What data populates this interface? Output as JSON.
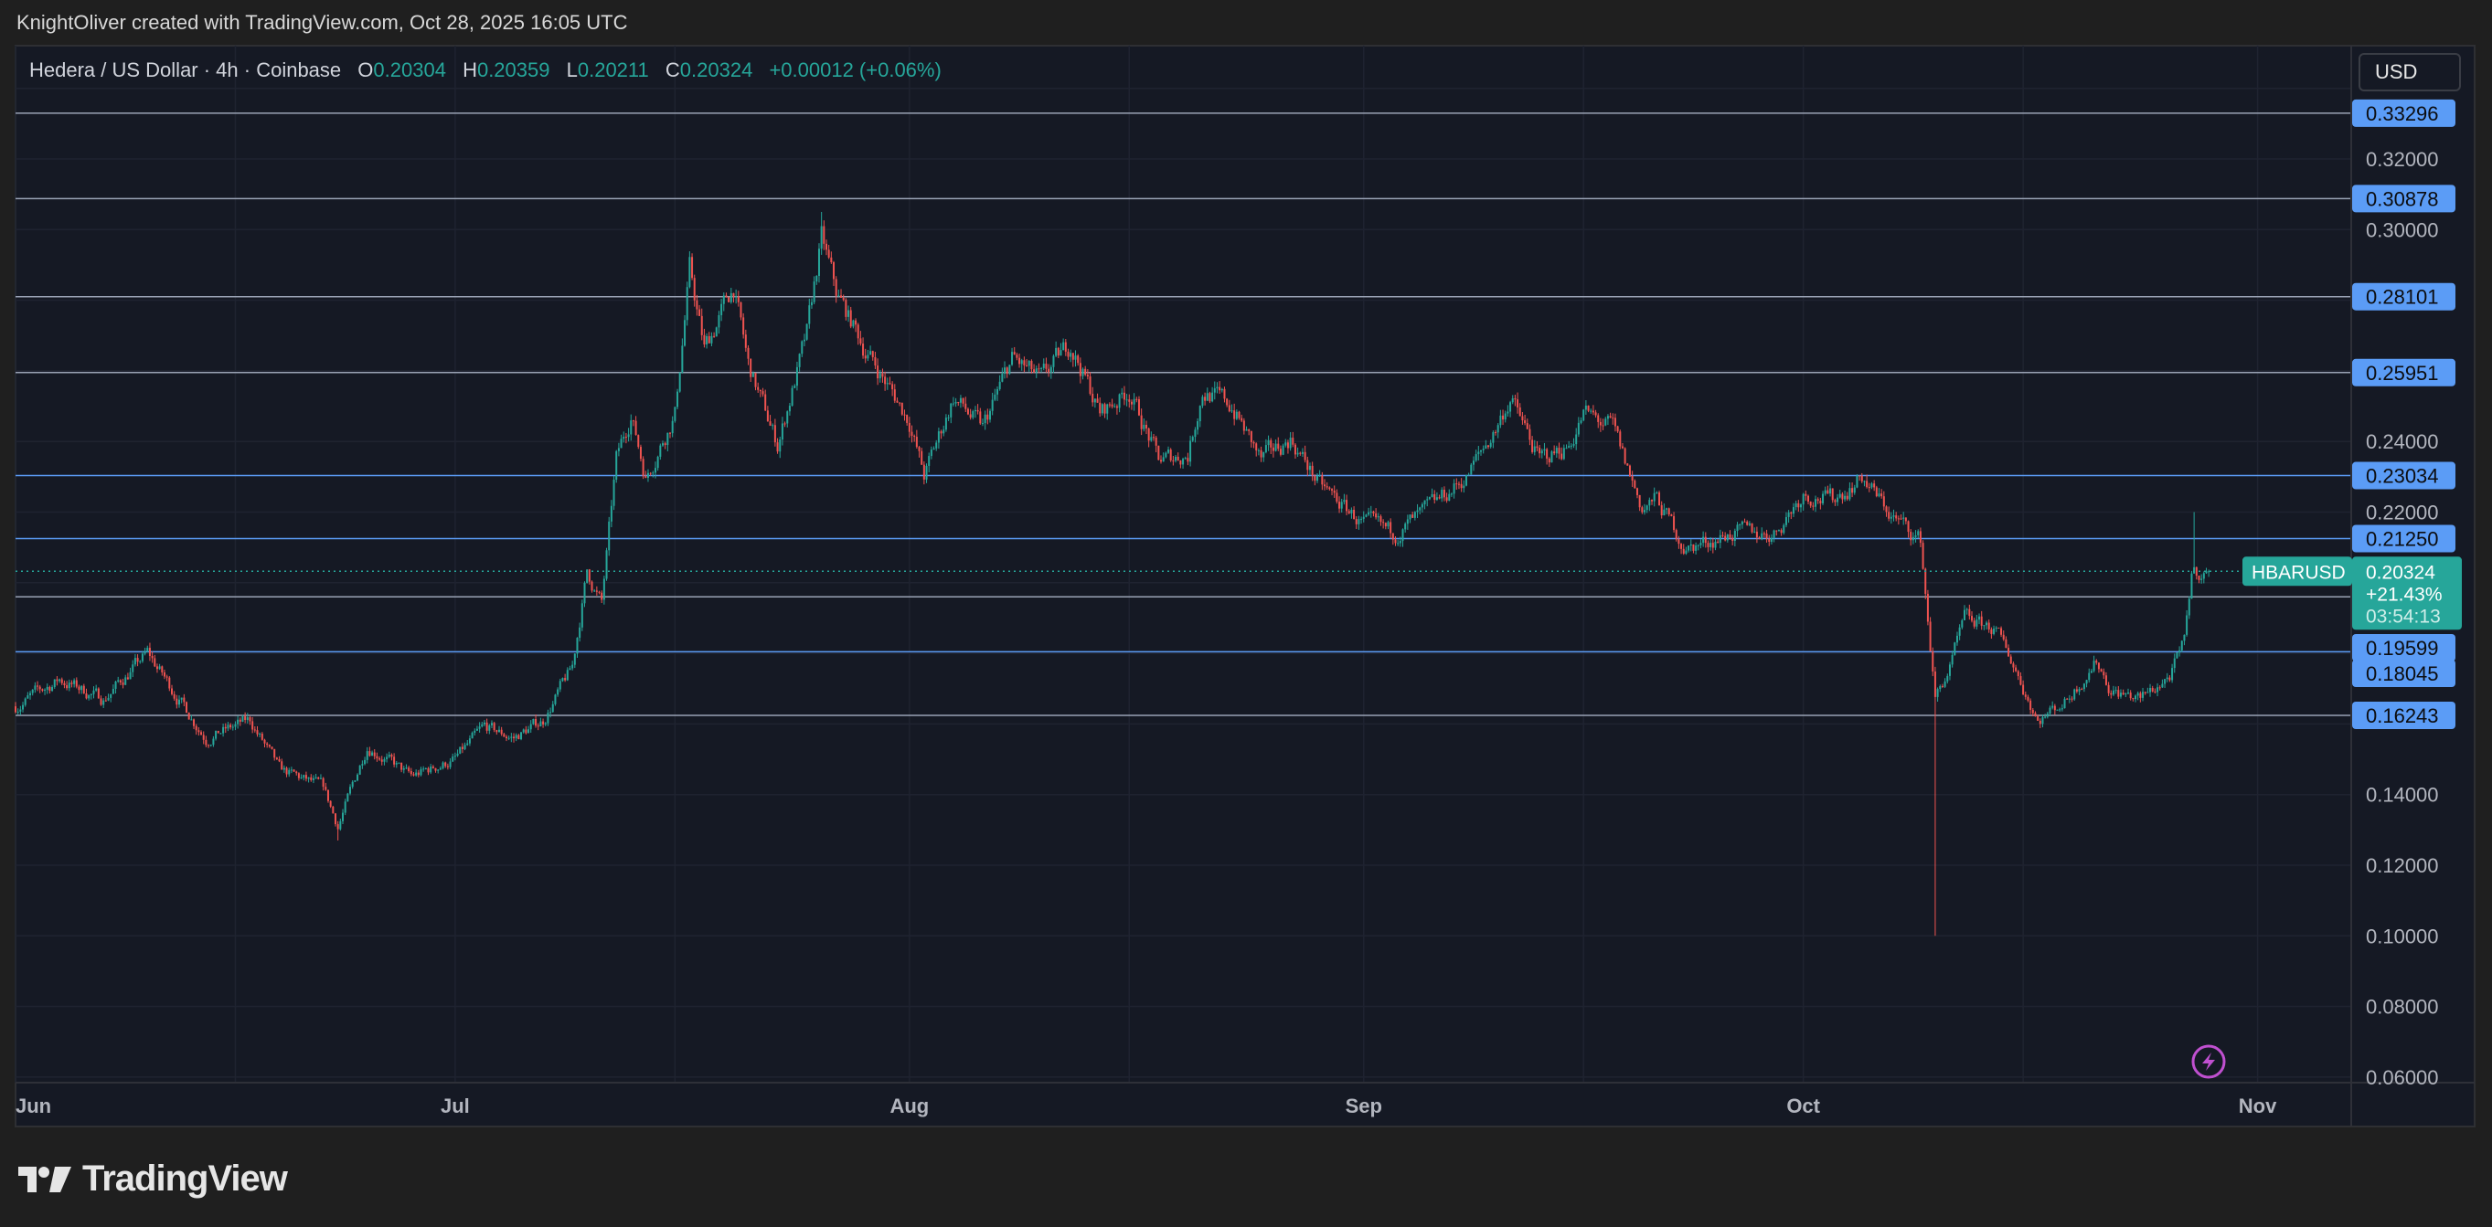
{
  "credit": "KnightOliver created with TradingView.com, Oct 28, 2025 16:05 UTC",
  "legend": {
    "symbol_desc": "Hedera / US Dollar · 4h · Coinbase",
    "o_label": "O",
    "o": "0.20304",
    "h_label": "H",
    "h": "0.20359",
    "l_label": "L",
    "l": "0.20211",
    "c_label": "C",
    "c": "0.20324",
    "change": "+0.00012 (+0.06%)"
  },
  "currency_button": "USD",
  "price_axis_ticks": [
    "0.32000",
    "0.30000",
    "0.24000",
    "0.22000",
    "0.14000",
    "0.12000",
    "0.10000",
    "0.08000",
    "0.06000"
  ],
  "time_axis_ticks": [
    "Jun",
    "Jul",
    "Aug",
    "Sep",
    "Oct",
    "Nov"
  ],
  "levels": [
    "0.33296",
    "0.30878",
    "0.28101",
    "0.25951",
    "0.23034",
    "0.21250",
    "0.19599",
    "0.18045",
    "0.16243"
  ],
  "current": {
    "symbol": "HBARUSD",
    "price": "0.20324",
    "change_pct": "+21.43%",
    "countdown": "03:54:13"
  },
  "logo_text": "TradingView",
  "colors": {
    "up": "#26a69a",
    "down": "#ef5350",
    "level_label": "#5b9cf6",
    "background": "#151924",
    "lightning": "#c050d0"
  },
  "icons": {
    "alert": "lightning-icon"
  },
  "chart_data": {
    "type": "candlestick",
    "interval": "4h",
    "symbol": "HBARUSD",
    "ylim": [
      0.06,
      0.34
    ],
    "grid": true,
    "path": [
      [
        "2025-06-01",
        0.165
      ],
      [
        "2025-06-04",
        0.1726
      ],
      [
        "2025-06-07",
        0.167
      ],
      [
        "2025-06-10",
        0.18
      ],
      [
        "2025-06-14",
        0.156
      ],
      [
        "2025-06-17",
        0.161
      ],
      [
        "2025-06-19",
        0.147
      ],
      [
        "2025-06-22",
        0.142
      ],
      [
        "2025-06-23",
        0.131
      ],
      [
        "2025-06-25",
        0.154
      ],
      [
        "2025-06-28",
        0.145
      ],
      [
        "2025-07-01",
        0.15
      ],
      [
        "2025-07-03",
        0.159
      ],
      [
        "2025-07-05",
        0.156
      ],
      [
        "2025-07-07",
        0.161
      ],
      [
        "2025-07-09",
        0.176
      ],
      [
        "2025-07-10",
        0.203
      ],
      [
        "2025-07-11",
        0.194
      ],
      [
        "2025-07-12",
        0.2345
      ],
      [
        "2025-07-13",
        0.248
      ],
      [
        "2025-07-14",
        0.23
      ],
      [
        "2025-07-16",
        0.248
      ],
      [
        "2025-07-17",
        0.2885
      ],
      [
        "2025-07-18",
        0.266
      ],
      [
        "2025-07-20",
        0.284
      ],
      [
        "2025-07-21",
        0.2615
      ],
      [
        "2025-07-23",
        0.239
      ],
      [
        "2025-07-25",
        0.27
      ],
      [
        "2025-07-26",
        0.2975
      ],
      [
        "2025-07-27",
        0.282
      ],
      [
        "2025-07-29",
        0.266
      ],
      [
        "2025-08-01",
        0.246
      ],
      [
        "2025-08-02",
        0.23
      ],
      [
        "2025-08-04",
        0.2525
      ],
      [
        "2025-08-06",
        0.2435
      ],
      [
        "2025-08-08",
        0.2635
      ],
      [
        "2025-08-10",
        0.257
      ],
      [
        "2025-08-12",
        0.268
      ],
      [
        "2025-08-14",
        0.248
      ],
      [
        "2025-08-16",
        0.2545
      ],
      [
        "2025-08-18",
        0.2345
      ],
      [
        "2025-08-20",
        0.2365
      ],
      [
        "2025-08-21",
        0.2545
      ],
      [
        "2025-08-23",
        0.25
      ],
      [
        "2025-08-25",
        0.2345
      ],
      [
        "2025-08-27",
        0.241
      ],
      [
        "2025-08-29",
        0.2275
      ],
      [
        "2025-09-01",
        0.2165
      ],
      [
        "2025-09-03",
        0.214
      ],
      [
        "2025-09-05",
        0.219
      ],
      [
        "2025-09-08",
        0.23
      ],
      [
        "2025-09-10",
        0.2435
      ],
      [
        "2025-09-11",
        0.2525
      ],
      [
        "2025-09-13",
        0.2345
      ],
      [
        "2025-09-15",
        0.239
      ],
      [
        "2025-09-16",
        0.248
      ],
      [
        "2025-09-18",
        0.2435
      ],
      [
        "2025-09-20",
        0.221
      ],
      [
        "2025-09-21",
        0.2235
      ],
      [
        "2025-09-23",
        0.2095
      ],
      [
        "2025-09-26",
        0.214
      ],
      [
        "2025-09-29",
        0.214
      ],
      [
        "2025-10-01",
        0.2255
      ],
      [
        "2025-10-03",
        0.2235
      ],
      [
        "2025-10-05",
        0.23
      ],
      [
        "2025-10-07",
        0.219
      ],
      [
        "2025-10-09",
        0.212
      ],
      [
        "2025-10-10",
        0.167
      ],
      [
        "2025-10-11",
        0.176
      ],
      [
        "2025-10-12",
        0.1895
      ],
      [
        "2025-10-14",
        0.187
      ],
      [
        "2025-10-15",
        0.18
      ],
      [
        "2025-10-17",
        0.161
      ],
      [
        "2025-10-19",
        0.167
      ],
      [
        "2025-10-21",
        0.178
      ],
      [
        "2025-10-22",
        0.1695
      ],
      [
        "2025-10-24",
        0.167
      ],
      [
        "2025-10-26",
        0.1735
      ],
      [
        "2025-10-27",
        0.1825
      ],
      [
        "2025-10-27T12:00",
        0.203
      ],
      [
        "2025-10-28T16:00",
        0.20324
      ]
    ],
    "extremes": [
      [
        "2025-07-26",
        0.305
      ],
      [
        "2025-10-10",
        0.1
      ],
      [
        "2025-10-27T16:00",
        0.22
      ],
      [
        "2025-06-23",
        0.127
      ]
    ]
  }
}
